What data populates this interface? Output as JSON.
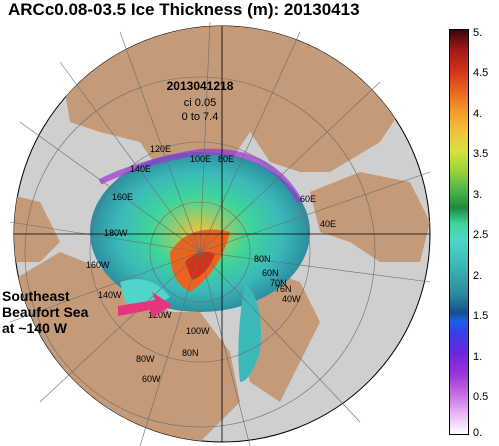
{
  "title": "ARCc0.08-03.5 Ice Thickness (m): 20130413",
  "map_info": {
    "line1": "2013041218",
    "line2": "ci 0.05",
    "line3": "0 to 7.4"
  },
  "colorbar": {
    "ticks": [
      "5.",
      "4.5",
      "4.",
      "3.5",
      "3.",
      "2.5",
      "2.",
      "1.5",
      "1.",
      "0.5",
      "0."
    ],
    "min": 0,
    "max": 5
  },
  "graticule_labels": [
    "120E",
    "100E",
    "80E",
    "140E",
    "60E",
    "160E",
    "40E",
    "180W",
    "160W",
    "140W",
    "120W",
    "100W",
    "80N",
    "60N",
    "70N",
    "76N",
    "40W",
    "80N",
    "80W",
    "60W"
  ],
  "annotation": {
    "line1": "Southeast",
    "line2": "Beaufort Sea",
    "line3": "at ~140 W"
  },
  "colors": {
    "ocean": "#cfcfcf",
    "land": "#c49a78",
    "arrow": "#e6357f",
    "ice_thick": "#d93a1a",
    "ice_mid": "#4fd6c8",
    "ice_thin": "#9a33d6"
  }
}
